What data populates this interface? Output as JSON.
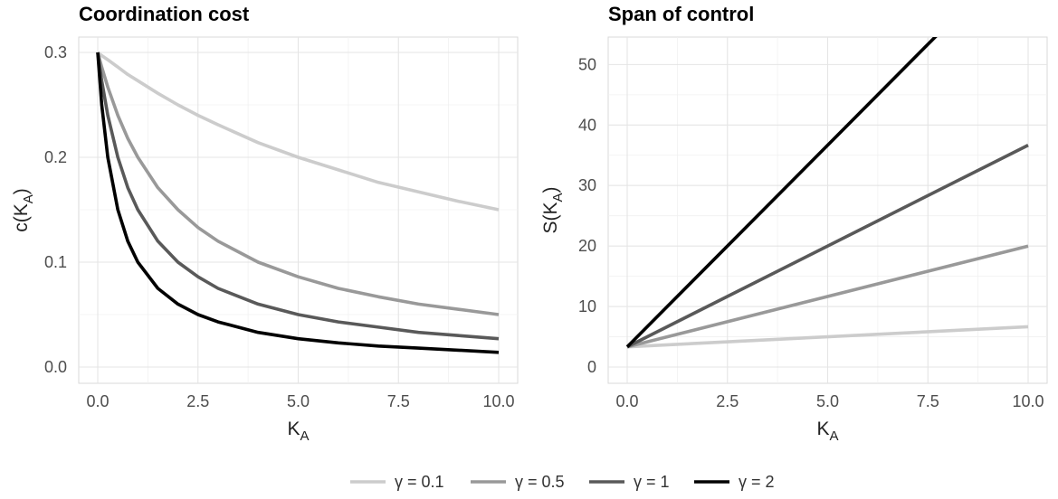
{
  "chart_data": [
    {
      "type": "line",
      "title": "Coordination cost",
      "xlabel": "K",
      "xlabel_sub": "A",
      "ylabel": "c(K",
      "ylabel_sub": "A",
      "ylabel_close": ")",
      "xlim": [
        0,
        10
      ],
      "ylim": [
        0,
        0.3
      ],
      "xticks": [
        0,
        2.5,
        5,
        7.5,
        10
      ],
      "xtick_labels": [
        "0.0",
        "2.5",
        "5.0",
        "7.5",
        "10.0"
      ],
      "yticks": [
        0,
        0.1,
        0.2,
        0.3
      ],
      "ytick_labels": [
        "0.0",
        "0.1",
        "0.2",
        "0.3"
      ],
      "grid": true,
      "x": [
        0,
        0.1,
        0.25,
        0.5,
        0.75,
        1,
        1.5,
        2,
        2.5,
        3,
        4,
        5,
        6,
        7,
        8,
        9,
        10
      ],
      "series": [
        {
          "name": "γ = 0.1",
          "color": "#cccccc",
          "values": [
            0.3,
            0.297,
            0.293,
            0.286,
            0.279,
            0.273,
            0.261,
            0.25,
            0.24,
            0.231,
            0.214,
            0.2,
            0.188,
            0.176,
            0.167,
            0.158,
            0.15
          ]
        },
        {
          "name": "γ = 0.5",
          "color": "#999999",
          "values": [
            0.3,
            0.286,
            0.267,
            0.24,
            0.218,
            0.2,
            0.171,
            0.15,
            0.133,
            0.12,
            0.1,
            0.086,
            0.075,
            0.067,
            0.06,
            0.055,
            0.05
          ]
        },
        {
          "name": "γ = 1",
          "color": "#595959",
          "values": [
            0.3,
            0.273,
            0.24,
            0.2,
            0.171,
            0.15,
            0.12,
            0.1,
            0.086,
            0.075,
            0.06,
            0.05,
            0.043,
            0.038,
            0.033,
            0.03,
            0.027
          ]
        },
        {
          "name": "γ = 2",
          "color": "#000000",
          "values": [
            0.3,
            0.25,
            0.2,
            0.15,
            0.12,
            0.1,
            0.075,
            0.06,
            0.05,
            0.043,
            0.033,
            0.027,
            0.023,
            0.02,
            0.018,
            0.016,
            0.014
          ]
        }
      ]
    },
    {
      "type": "line",
      "title": "Span of control",
      "xlabel": "K",
      "xlabel_sub": "A",
      "ylabel": "S(K",
      "ylabel_sub": "A",
      "ylabel_close": ")",
      "xlim": [
        0,
        10
      ],
      "ylim": [
        0,
        52
      ],
      "xticks": [
        0,
        2.5,
        5,
        7.5,
        10
      ],
      "xtick_labels": [
        "0.0",
        "2.5",
        "5.0",
        "7.5",
        "10.0"
      ],
      "yticks": [
        0,
        10,
        20,
        30,
        40,
        50
      ],
      "ytick_labels": [
        "0",
        "10",
        "20",
        "30",
        "40",
        "50"
      ],
      "grid": true,
      "x": [
        0,
        10
      ],
      "series": [
        {
          "name": "γ = 0.1",
          "color": "#cccccc",
          "values": [
            3.33,
            6.67
          ]
        },
        {
          "name": "γ = 0.5",
          "color": "#999999",
          "values": [
            3.33,
            20
          ]
        },
        {
          "name": "γ = 1",
          "color": "#595959",
          "values": [
            3.33,
            36.67
          ]
        },
        {
          "name": "γ = 2",
          "color": "#000000",
          "values": [
            3.33,
            70
          ]
        }
      ]
    }
  ],
  "legend": {
    "position": "bottom",
    "items": [
      {
        "label": "γ = 0.1",
        "color": "#cccccc"
      },
      {
        "label": "γ = 0.5",
        "color": "#999999"
      },
      {
        "label": "γ = 1",
        "color": "#595959"
      },
      {
        "label": "γ = 2",
        "color": "#000000"
      }
    ]
  }
}
